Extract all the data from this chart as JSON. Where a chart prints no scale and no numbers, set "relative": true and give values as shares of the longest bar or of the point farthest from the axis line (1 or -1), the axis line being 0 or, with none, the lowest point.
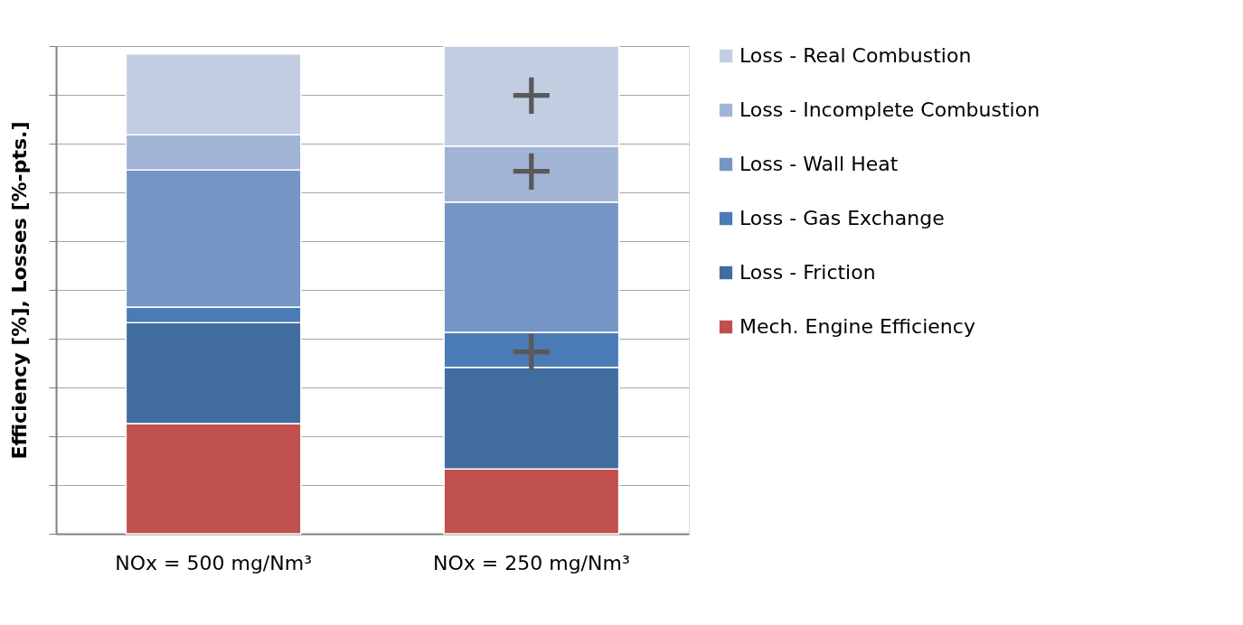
{
  "chart_data": {
    "type": "bar",
    "stacked": true,
    "relative": true,
    "ylabel": "Efficiency [%], Losses [%-pts.]",
    "categories": [
      "NOx = 500 mg/Nm³",
      "NOx = 250 mg/Nm³"
    ],
    "series": [
      {
        "name": "Mech. Engine Efficiency",
        "color": "#c0504d",
        "values": [
          0.226,
          0.133
        ]
      },
      {
        "name": "Loss - Friction",
        "color": "#416ca0",
        "values": [
          0.207,
          0.208
        ]
      },
      {
        "name": "Loss - Gas Exchange",
        "color": "#4a7bb5",
        "values": [
          0.032,
          0.072
        ]
      },
      {
        "name": "Loss - Wall Heat",
        "color": "#7595c6",
        "values": [
          0.281,
          0.267
        ]
      },
      {
        "name": "Loss - Incomplete Combustion",
        "color": "#a2b4d6",
        "values": [
          0.072,
          0.115
        ]
      },
      {
        "name": "Loss - Real Combustion",
        "color": "#c3cde2",
        "values": [
          0.166,
          0.205
        ]
      }
    ],
    "annotations": [
      "+",
      "+",
      "+"
    ],
    "grid": "y",
    "legend": "right"
  }
}
